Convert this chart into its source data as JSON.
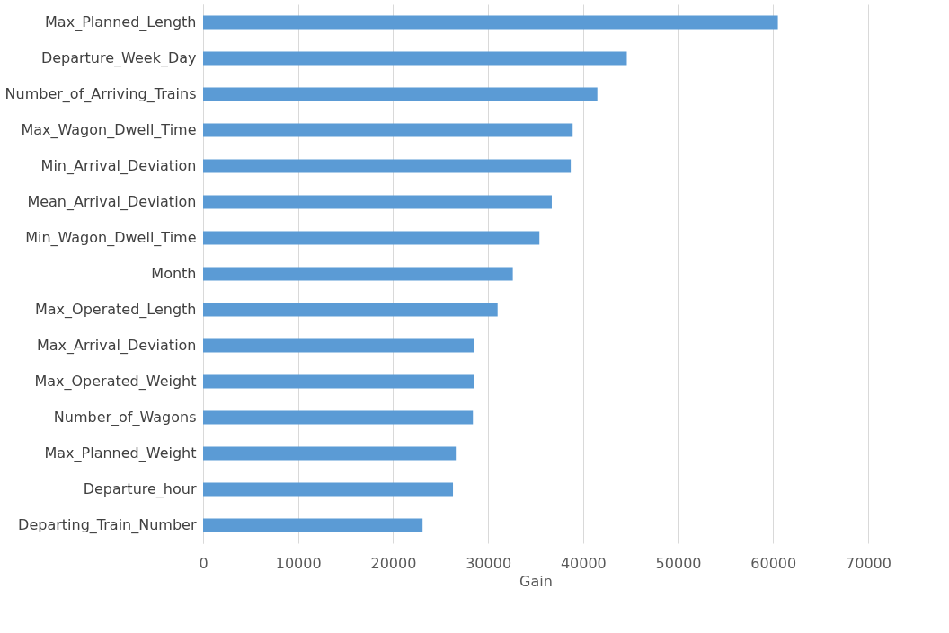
{
  "chart_data": {
    "type": "bar",
    "orientation": "horizontal",
    "xlabel": "Gain",
    "categories": [
      "Max_Planned_Length",
      "Departure_Week_Day",
      "Number_of_Arriving_Trains",
      "Max_Wagon_Dwell_Time",
      "Min_Arrival_Deviation",
      "Mean_Arrival_Deviation",
      "Min_Wagon_Dwell_Time",
      "Month",
      "Max_Operated_Length",
      "Max_Arrival_Deviation",
      "Max_Operated_Weight",
      "Number_of_Wagons",
      "Max_Planned_Weight",
      "Departure_hour",
      "Departing_Train_Number"
    ],
    "values": [
      60500,
      44600,
      41500,
      38900,
      38700,
      36700,
      35400,
      32600,
      31000,
      28500,
      28500,
      28400,
      26600,
      26300,
      23100
    ],
    "color": "#5b9bd5",
    "xlim": [
      0,
      70000
    ],
    "xticks": [
      0,
      10000,
      20000,
      30000,
      40000,
      50000,
      60000,
      70000
    ],
    "grid": "x"
  }
}
